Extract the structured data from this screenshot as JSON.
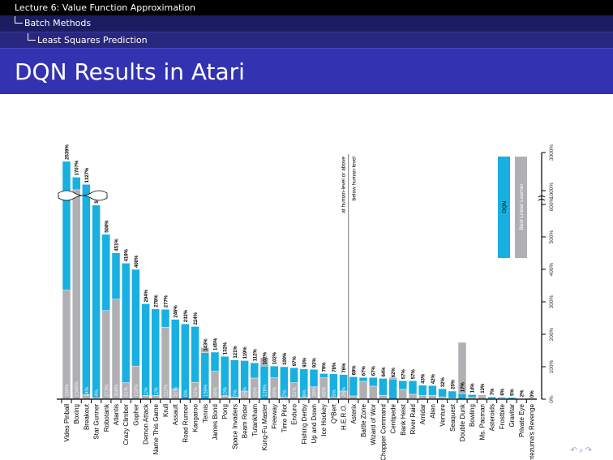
{
  "header": {
    "section": "Lecture 6: Value Function Approximation",
    "subsection": "Batch Methods",
    "subsubsection": "Least Squares Prediction",
    "title": "DQN Results in Atari"
  },
  "nav_icons": [
    "undo-icon",
    "search-icon",
    "redo-icon"
  ],
  "chart_data": {
    "type": "bar",
    "orientation": "rotated-90",
    "title": "",
    "ylabel": "",
    "y_ticks": [
      "0%",
      "100%",
      "200%",
      "300%",
      "400%",
      "500%",
      "600%",
      "1000%",
      "3000%"
    ],
    "axis_break": "between 600% and 1000%",
    "legend": {
      "placement": "top-right",
      "entries": [
        "DQN",
        "Best Linear Learner"
      ]
    },
    "annotations": {
      "above": "at human-level or above",
      "below": "below human-level",
      "divider_after": "H.E.R.O."
    },
    "colors": {
      "dqn": "#17b0e0",
      "linear": "#b0b0b4"
    },
    "series": [
      {
        "name": "DQN"
      },
      {
        "name": "Best Linear Learner"
      }
    ],
    "games": [
      {
        "name": "Video Pinball",
        "dqn": 2539,
        "linear": 336,
        "linear_label": "336%"
      },
      {
        "name": "Boxing",
        "dqn": 1707,
        "linear": 1046,
        "linear_label": "1046%"
      },
      {
        "name": "Breakout",
        "dqn": 1327,
        "linear": 14,
        "linear_label": "14%"
      },
      {
        "name": "Star Gunner",
        "dqn": 598,
        "linear": 4,
        "linear_label": "4%"
      },
      {
        "name": "Robotank",
        "dqn": 508,
        "linear": 273,
        "linear_label": "273%"
      },
      {
        "name": "Atlantis",
        "dqn": 451,
        "linear": 308,
        "linear_label": "308%"
      },
      {
        "name": "Crazy Climber",
        "dqn": 419,
        "linear": 51,
        "linear_label": "51%"
      },
      {
        "name": "Gopher",
        "dqn": 400,
        "linear": 102,
        "linear_label": "102%"
      },
      {
        "name": "Demon Attack",
        "dqn": 294,
        "linear": 11,
        "linear_label": "11%"
      },
      {
        "name": "Name This Game",
        "dqn": 278,
        "linear": 11,
        "linear_label": "11%"
      },
      {
        "name": "Krull",
        "dqn": 277,
        "linear": 222,
        "linear_label": "222%"
      },
      {
        "name": "Assault",
        "dqn": 246,
        "linear": 31,
        "linear_label": "31%"
      },
      {
        "name": "Road Runner",
        "dqn": 232,
        "linear": 0,
        "linear_label": "0%"
      },
      {
        "name": "Kangaroo",
        "dqn": 224,
        "linear": 52,
        "linear_label": "52%"
      },
      {
        "name": "Tennis",
        "dqn": 143,
        "linear": 159,
        "linear_label": "159%"
      },
      {
        "name": "James Bond",
        "dqn": 145,
        "linear": 86,
        "linear_label": "86%"
      },
      {
        "name": "Pong",
        "dqn": 132,
        "linear": 10,
        "linear_label": "10%"
      },
      {
        "name": "Space Invaders",
        "dqn": 121,
        "linear": 7,
        "linear_label": "7%"
      },
      {
        "name": "Beam Rider",
        "dqn": 119,
        "linear": 25,
        "linear_label": "25%"
      },
      {
        "name": "Tutankham",
        "dqn": 112,
        "linear": 65,
        "linear_label": "65%"
      },
      {
        "name": "Kung-Fu Master",
        "dqn": 102,
        "linear": 128,
        "linear_label": "128%"
      },
      {
        "name": "Freeway",
        "dqn": 102,
        "linear": 66,
        "linear_label": "66%"
      },
      {
        "name": "Time Pilot",
        "dqn": 100,
        "linear": 7,
        "linear_label": "7%"
      },
      {
        "name": "Enduro",
        "dqn": 97,
        "linear": 51,
        "linear_label": "51%"
      },
      {
        "name": "Fishing Derby",
        "dqn": 93,
        "linear": 6,
        "linear_label": "6%"
      },
      {
        "name": "Up and Down",
        "dqn": 92,
        "linear": 38,
        "linear_label": "38%"
      },
      {
        "name": "Ice Hockey",
        "dqn": 79,
        "linear": 66,
        "linear_label": "66%"
      },
      {
        "name": "Q*Bert",
        "dqn": 78,
        "linear": 5,
        "linear_label": "5%"
      },
      {
        "name": "H.E.R.O.",
        "dqn": 76,
        "linear": 25,
        "linear_label": "25%"
      },
      {
        "name": "Asterix",
        "dqn": 69,
        "linear": 10
      },
      {
        "name": "Battle Zone",
        "dqn": 67,
        "linear": 55
      },
      {
        "name": "Wizard of Wor",
        "dqn": 67,
        "linear": 40
      },
      {
        "name": "Chopper Command",
        "dqn": 64,
        "linear": 12
      },
      {
        "name": "Centipede",
        "dqn": 62,
        "linear": 67
      },
      {
        "name": "Bank Heist",
        "dqn": 57,
        "linear": 30
      },
      {
        "name": "River Raid",
        "dqn": 57,
        "linear": 15
      },
      {
        "name": "Amidar",
        "dqn": 43,
        "linear": 12
      },
      {
        "name": "Alien",
        "dqn": 42,
        "linear": 12
      },
      {
        "name": "Venture",
        "dqn": 32,
        "linear": 7
      },
      {
        "name": "Seaquest",
        "dqn": 25,
        "linear": 2
      },
      {
        "name": "Double Dunk",
        "dqn": 17,
        "linear": 175
      },
      {
        "name": "Bowling",
        "dqn": 14,
        "linear": 5
      },
      {
        "name": "Ms. Pacman",
        "dqn": 13,
        "linear": 10
      },
      {
        "name": "Asteroids",
        "dqn": 7,
        "linear": 1
      },
      {
        "name": "Frostbite",
        "dqn": 6,
        "linear": 2
      },
      {
        "name": "Gravitar",
        "dqn": 5,
        "linear": 6
      },
      {
        "name": "Private Eye",
        "dqn": 2,
        "linear": 1
      },
      {
        "name": "Montezuma's Revenge",
        "dqn": 0,
        "linear": 3
      }
    ]
  }
}
